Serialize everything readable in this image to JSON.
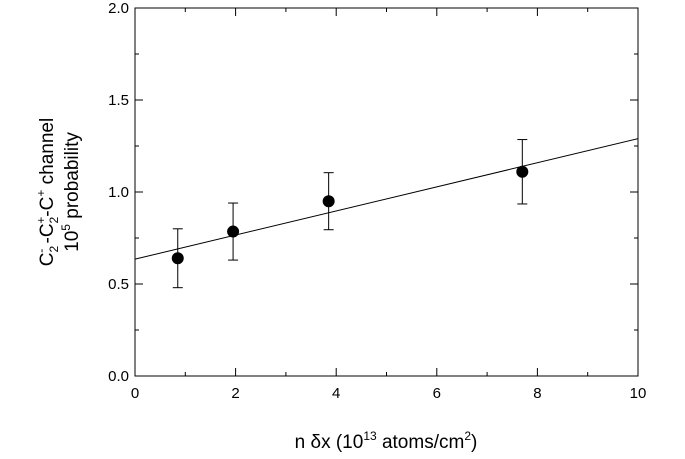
{
  "chart_data": {
    "type": "scatter",
    "xlim": [
      0,
      10
    ],
    "ylim": [
      0.0,
      2.0
    ],
    "x_ticks": [
      "0",
      "2",
      "4",
      "6",
      "8",
      "10"
    ],
    "y_ticks": [
      "0.0",
      "0.5",
      "1.0",
      "1.5",
      "2.0"
    ],
    "xlabel": {
      "text": "n δx (10",
      "exp": "13",
      "text2": " atoms/cm",
      "exp2": "2",
      "text3": ")"
    },
    "ylabel_line1": {
      "c1": "C",
      "c1_sub": "2",
      "c1_sup": "-",
      "sep1": " -C",
      "c2_sub": "2",
      "c2_sup": "+",
      "sep2": "-C",
      "c3_sup": "+",
      "tail": " channel"
    },
    "ylabel_line2": {
      "base": "10",
      "exp": "5",
      "tail": " probability"
    },
    "points": [
      {
        "x": 0.85,
        "y": 0.64,
        "err": 0.16
      },
      {
        "x": 1.95,
        "y": 0.785,
        "err": 0.155
      },
      {
        "x": 3.85,
        "y": 0.95,
        "err": 0.155
      },
      {
        "x": 7.7,
        "y": 1.11,
        "err": 0.175
      }
    ],
    "fit_line": {
      "x": [
        0,
        10
      ],
      "y": [
        0.635,
        1.29
      ]
    },
    "grid": false,
    "legend": "none",
    "colors": {
      "marker": "#000000",
      "line": "#000000",
      "axes": "#000000"
    }
  }
}
